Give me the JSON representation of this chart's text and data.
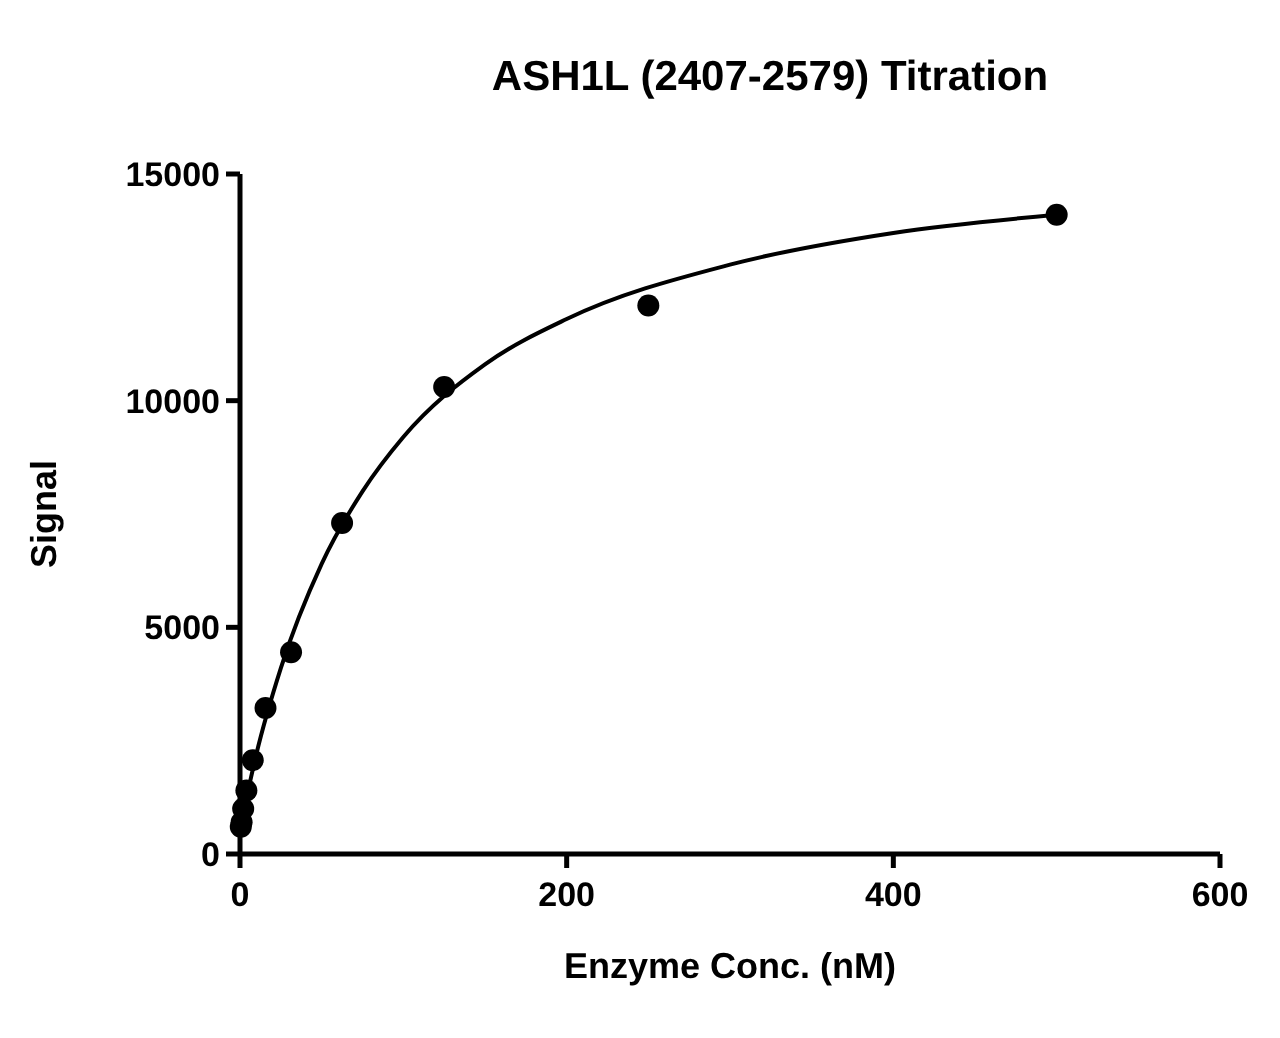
{
  "chart_data": {
    "type": "scatter",
    "title": "ASH1L (2407-2579) Titration",
    "xlabel": "Enzyme Conc. (nM)",
    "ylabel": "Signal",
    "xlim": [
      0,
      600
    ],
    "xticks": [
      0,
      200,
      400,
      600
    ],
    "ylim": [
      0,
      15000
    ],
    "yticks": [
      0,
      5000,
      10000,
      15000
    ],
    "grid": false,
    "series": [
      {
        "marker": "circle",
        "color": "#000000",
        "x": [
          0.49,
          0.98,
          1.95,
          3.9,
          7.8,
          15.6,
          31.25,
          62.5,
          125,
          250,
          500
        ],
        "values": [
          600,
          700,
          1000,
          1400,
          2070,
          3220,
          4450,
          7300,
          10300,
          12100,
          14100
        ]
      },
      {
        "type": "line",
        "marker": "none",
        "line_style": "solid",
        "color": "#000000",
        "x": [
          0,
          5,
          10,
          25,
          50,
          75,
          100,
          150,
          200,
          300,
          400,
          500
        ],
        "values": [
          500,
          1400,
          2200,
          4100,
          6400,
          8000,
          9200,
          10800,
          11800,
          13000,
          13700,
          14100
        ]
      }
    ]
  }
}
